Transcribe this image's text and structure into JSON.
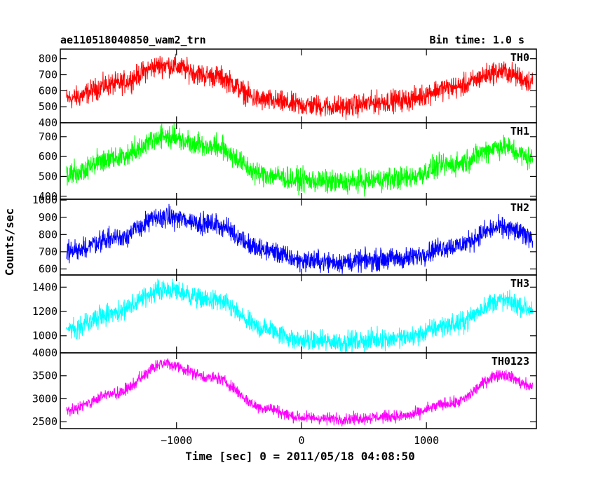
{
  "chart_data": {
    "type": "line",
    "title": "ae110518040850_wam2_trn",
    "bin_label": "Bin time: 1.0 s",
    "xlabel": "Time [sec] 0 = 2011/05/18 04:08:50",
    "ylabel": "Counts/sec",
    "xlim": [
      -1930,
      1880
    ],
    "x_ticks": [
      -1000,
      0,
      1000
    ],
    "x_tick_labels": [
      "−1000",
      "0",
      "1000"
    ],
    "grid": false,
    "series": [
      {
        "name": "TH0",
        "color": "#ff0000",
        "ylim": [
          400,
          860
        ],
        "y_ticks": [
          400,
          500,
          600,
          700,
          800
        ],
        "noise_amplitude": 45,
        "trend": [
          [
            -1880,
            550
          ],
          [
            -1500,
            640
          ],
          [
            -1100,
            760
          ],
          [
            -700,
            690
          ],
          [
            -300,
            540
          ],
          [
            0,
            510
          ],
          [
            300,
            500
          ],
          [
            800,
            540
          ],
          [
            1200,
            620
          ],
          [
            1600,
            720
          ],
          [
            1850,
            660
          ]
        ]
      },
      {
        "name": "TH1",
        "color": "#00ff00",
        "ylim": [
          385,
          770
        ],
        "y_ticks": [
          400,
          500,
          600,
          700
        ],
        "noise_amplitude": 38,
        "trend": [
          [
            -1880,
            510
          ],
          [
            -1500,
            590
          ],
          [
            -1100,
            700
          ],
          [
            -700,
            650
          ],
          [
            -300,
            510
          ],
          [
            0,
            480
          ],
          [
            300,
            470
          ],
          [
            800,
            490
          ],
          [
            1200,
            560
          ],
          [
            1600,
            650
          ],
          [
            1850,
            590
          ]
        ]
      },
      {
        "name": "TH2",
        "color": "#0000ff",
        "ylim": [
          565,
          1005
        ],
        "y_ticks": [
          600,
          700,
          800,
          900,
          1000
        ],
        "noise_amplitude": 40,
        "trend": [
          [
            -1880,
            700
          ],
          [
            -1500,
            780
          ],
          [
            -1100,
            900
          ],
          [
            -700,
            860
          ],
          [
            -300,
            710
          ],
          [
            0,
            650
          ],
          [
            300,
            640
          ],
          [
            800,
            660
          ],
          [
            1200,
            730
          ],
          [
            1600,
            840
          ],
          [
            1850,
            790
          ]
        ]
      },
      {
        "name": "TH3",
        "color": "#00ffff",
        "ylim": [
          860,
          1500
        ],
        "y_ticks": [
          1000,
          1200,
          1400
        ],
        "noise_amplitude": 55,
        "trend": [
          [
            -1880,
            1060
          ],
          [
            -1500,
            1190
          ],
          [
            -1100,
            1380
          ],
          [
            -700,
            1290
          ],
          [
            -300,
            1060
          ],
          [
            0,
            960
          ],
          [
            300,
            950
          ],
          [
            800,
            980
          ],
          [
            1200,
            1090
          ],
          [
            1600,
            1290
          ],
          [
            1850,
            1220
          ]
        ]
      },
      {
        "name": "TH0123",
        "color": "#ff00ff",
        "ylim": [
          2350,
          4000
        ],
        "y_ticks": [
          2500,
          3000,
          3500,
          4000
        ],
        "noise_amplitude": 85,
        "trend": [
          [
            -1880,
            2750
          ],
          [
            -1500,
            3100
          ],
          [
            -1100,
            3760
          ],
          [
            -700,
            3450
          ],
          [
            -300,
            2800
          ],
          [
            0,
            2590
          ],
          [
            300,
            2560
          ],
          [
            800,
            2620
          ],
          [
            1200,
            2900
          ],
          [
            1600,
            3530
          ],
          [
            1850,
            3270
          ]
        ]
      }
    ]
  }
}
